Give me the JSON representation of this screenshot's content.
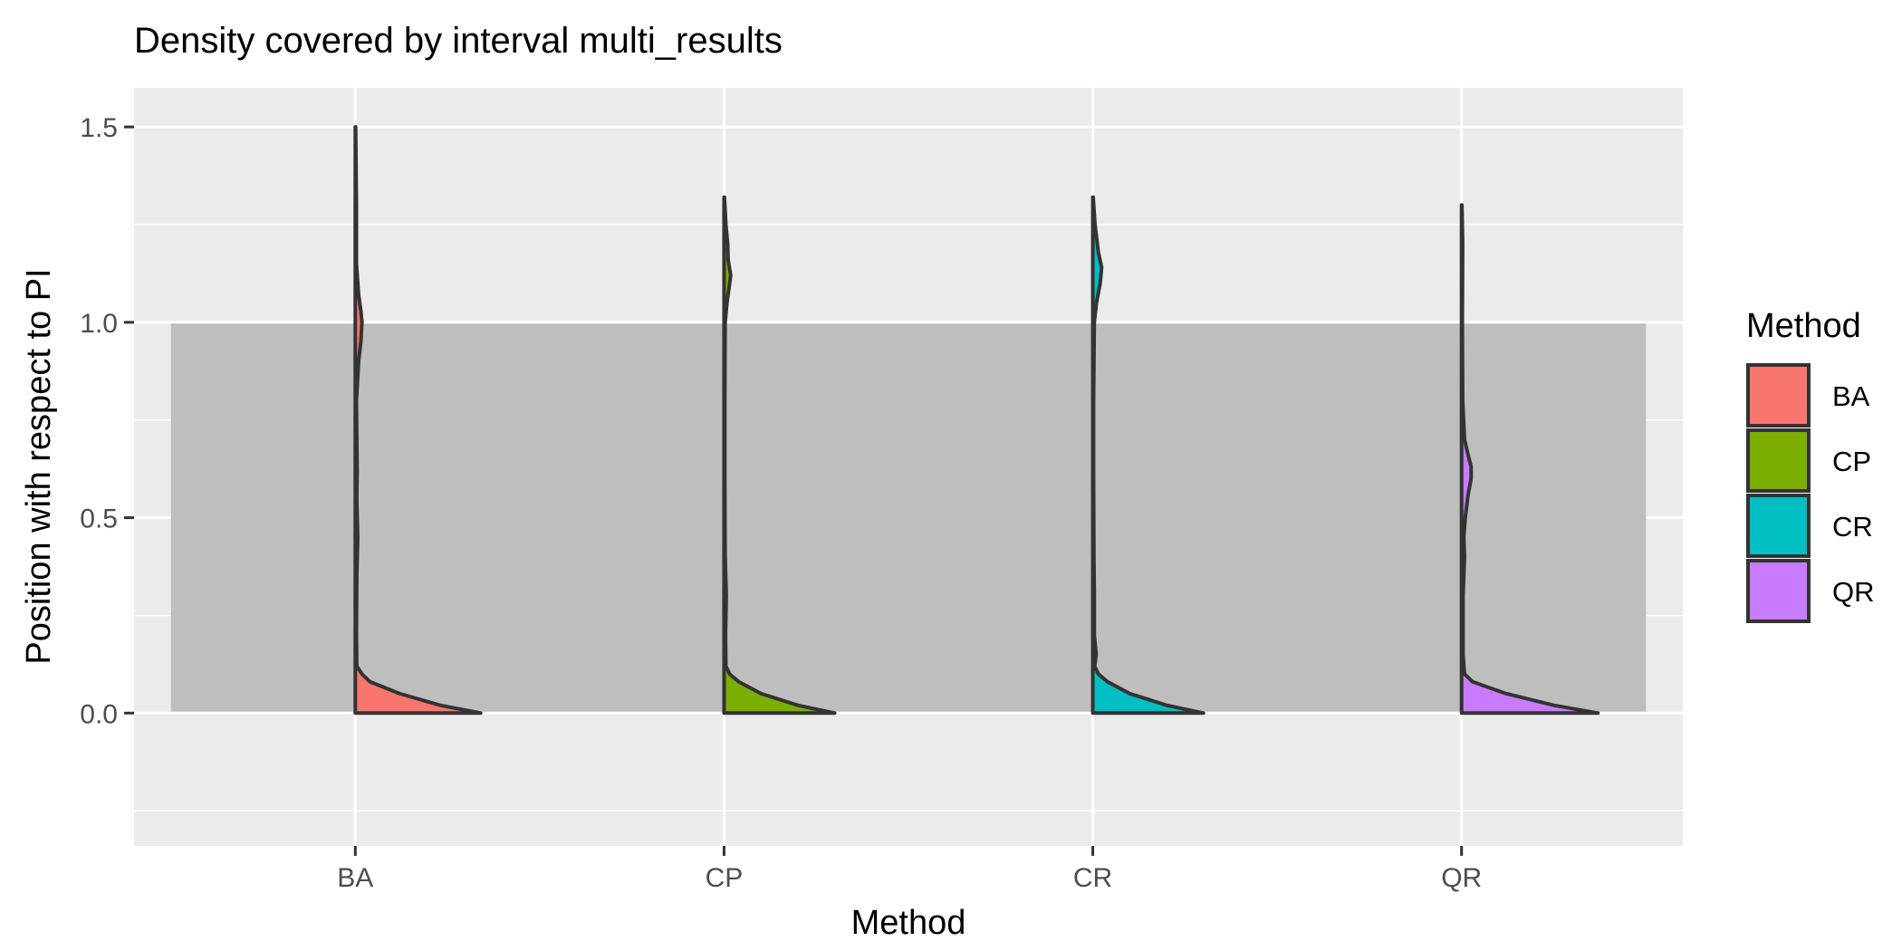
{
  "chart_data": {
    "type": "violin",
    "title": "Density covered by interval multi_results",
    "xlabel": "Method",
    "ylabel": "Position with respect to PI",
    "categories": [
      "BA",
      "CP",
      "CR",
      "QR"
    ],
    "ylim": [
      -0.34,
      1.6
    ],
    "yticks": [
      0.0,
      0.5,
      1.0,
      1.5
    ],
    "ytick_labels": [
      "0.0",
      "0.5",
      "1.0",
      "1.5"
    ],
    "grid": true,
    "interval_band": {
      "ymin": 0.0,
      "ymax": 1.0,
      "color": "#bebebe"
    },
    "legend": {
      "title": "Method",
      "position": "right",
      "items": [
        {
          "label": "BA",
          "color": "#F8766D"
        },
        {
          "label": "CP",
          "color": "#7CAE00"
        },
        {
          "label": "CR",
          "color": "#00BFC4"
        },
        {
          "label": "QR",
          "color": "#C77CFF"
        }
      ]
    },
    "series": [
      {
        "name": "BA",
        "color": "#F8766D",
        "ymax": 1.5,
        "density_y": [
          0.0,
          0.02,
          0.05,
          0.08,
          0.1,
          0.12,
          0.2,
          0.35,
          0.45,
          0.55,
          0.62,
          0.7,
          0.8,
          0.9,
          0.95,
          1.0,
          1.03,
          1.07,
          1.15,
          1.3,
          1.5
        ],
        "density_w": [
          0.34,
          0.23,
          0.12,
          0.04,
          0.018,
          0.004,
          0.003,
          0.004,
          0.0065,
          0.004,
          0.005,
          0.004,
          0.003,
          0.009,
          0.015,
          0.018,
          0.015,
          0.009,
          0.003,
          0.003,
          0.001
        ]
      },
      {
        "name": "CP",
        "color": "#7CAE00",
        "ymax": 1.32,
        "density_y": [
          0.0,
          0.02,
          0.05,
          0.08,
          0.1,
          0.12,
          0.2,
          0.3,
          0.4,
          0.6,
          0.8,
          1.0,
          1.05,
          1.12,
          1.16,
          1.2,
          1.25,
          1.32
        ],
        "density_w": [
          0.3,
          0.2,
          0.1,
          0.04,
          0.015,
          0.005,
          0.004,
          0.006,
          0.003,
          0.002,
          0.002,
          0.003,
          0.008,
          0.018,
          0.011,
          0.01,
          0.005,
          0.001
        ]
      },
      {
        "name": "CR",
        "color": "#00BFC4",
        "ymax": 1.32,
        "density_y": [
          0.0,
          0.02,
          0.05,
          0.08,
          0.1,
          0.12,
          0.15,
          0.2,
          0.3,
          0.4,
          0.6,
          0.8,
          1.0,
          1.05,
          1.1,
          1.14,
          1.18,
          1.25,
          1.32
        ],
        "density_w": [
          0.3,
          0.2,
          0.1,
          0.04,
          0.015,
          0.005,
          0.009,
          0.004,
          0.004,
          0.003,
          0.002,
          0.002,
          0.004,
          0.01,
          0.02,
          0.024,
          0.015,
          0.006,
          0.001
        ]
      },
      {
        "name": "QR",
        "color": "#C77CFF",
        "ymax": 1.3,
        "density_y": [
          0.0,
          0.02,
          0.05,
          0.08,
          0.1,
          0.15,
          0.3,
          0.4,
          0.45,
          0.5,
          0.56,
          0.6,
          0.63,
          0.66,
          0.7,
          0.8,
          1.0,
          1.2,
          1.3
        ],
        "density_w": [
          0.37,
          0.25,
          0.12,
          0.03,
          0.008,
          0.004,
          0.004,
          0.008,
          0.006,
          0.01,
          0.018,
          0.026,
          0.026,
          0.018,
          0.008,
          0.003,
          0.002,
          0.003,
          0.001
        ]
      }
    ]
  }
}
